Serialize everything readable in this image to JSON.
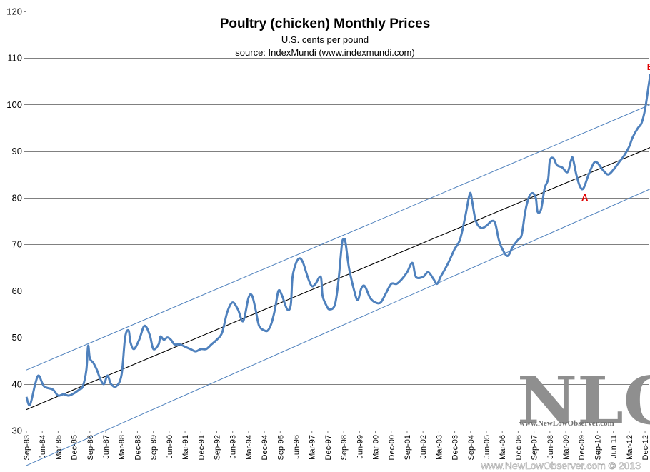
{
  "chart_data": {
    "type": "line",
    "title": "Poultry (chicken) Monthly Prices",
    "subtitle_lines": [
      "U.S. cents per pound",
      "source: IndexMundi (www.indexmundi.com)"
    ],
    "xlabel": "",
    "ylabel": "",
    "ylim": [
      30,
      120
    ],
    "y_ticks": [
      30,
      40,
      50,
      60,
      70,
      80,
      90,
      100,
      110,
      120
    ],
    "x_tick_labels": [
      "Sep-83",
      "Jun-84",
      "Mar-85",
      "Dec-85",
      "Sep-86",
      "Jun-87",
      "Mar-88",
      "Dec-88",
      "Sep-89",
      "Jun-90",
      "Mar-91",
      "Dec-91",
      "Sep-92",
      "Jun-93",
      "Mar-94",
      "Dec-94",
      "Sep-95",
      "Jun-96",
      "Mar-97",
      "Dec-97",
      "Sep-98",
      "Jun-99",
      "Mar-00",
      "Dec-00",
      "Sep-01",
      "Jun-02",
      "Mar-03",
      "Dec-03",
      "Sep-04",
      "Jun-05",
      "Mar-06",
      "Dec-06",
      "Sep-07",
      "Jun-08",
      "Mar-09",
      "Dec-09",
      "Sep-10",
      "Jun-11",
      "Mar-12",
      "Dec-12"
    ],
    "x_start": "Sep-83",
    "x_end": "Feb-13",
    "grid": "horizontal",
    "colors": {
      "series": "#4f81bd",
      "trend": "#000000",
      "channel": "#4f81bd",
      "grid": "#808080",
      "annotation": "#e00000"
    },
    "anchors": [
      [
        "Sep-83",
        37.2
      ],
      [
        "Nov-83",
        35.5
      ],
      [
        "Feb-84",
        40
      ],
      [
        "Apr-84",
        41.8
      ],
      [
        "Jul-84",
        39.5
      ],
      [
        "Dec-84",
        38.8
      ],
      [
        "Mar-85",
        37.5
      ],
      [
        "Jun-85",
        37.8
      ],
      [
        "Sep-85",
        37.5
      ],
      [
        "Dec-85",
        38
      ],
      [
        "Mar-86",
        38.8
      ],
      [
        "May-86",
        39.5
      ],
      [
        "Jul-86",
        43
      ],
      [
        "Aug-86",
        48.2
      ],
      [
        "Sep-86",
        45.5
      ],
      [
        "Nov-86",
        44.5
      ],
      [
        "Jan-87",
        43
      ],
      [
        "Mar-87",
        41
      ],
      [
        "May-87",
        40
      ],
      [
        "Jul-87",
        41.8
      ],
      [
        "Sep-87",
        40
      ],
      [
        "Dec-87",
        39.5
      ],
      [
        "Mar-88",
        42
      ],
      [
        "May-88",
        50
      ],
      [
        "Jul-88",
        51.5
      ],
      [
        "Aug-88",
        49
      ],
      [
        "Oct-88",
        47.5
      ],
      [
        "Jan-89",
        49.5
      ],
      [
        "Apr-89",
        52.5
      ],
      [
        "Jul-89",
        50.5
      ],
      [
        "Sep-89",
        47.5
      ],
      [
        "Dec-89",
        48.5
      ],
      [
        "Jan-90",
        50.2
      ],
      [
        "Mar-90",
        49.5
      ],
      [
        "May-90",
        50
      ],
      [
        "Jul-90",
        49.5
      ],
      [
        "Sep-90",
        48.5
      ],
      [
        "Dec-90",
        48.5
      ],
      [
        "Mar-91",
        48
      ],
      [
        "Jun-91",
        47.5
      ],
      [
        "Sep-91",
        47
      ],
      [
        "Dec-91",
        47.5
      ],
      [
        "Mar-92",
        47.5
      ],
      [
        "Jun-92",
        48.5
      ],
      [
        "Sep-92",
        49.5
      ],
      [
        "Dec-92",
        51
      ],
      [
        "Mar-93",
        55.5
      ],
      [
        "Jun-93",
        57.5
      ],
      [
        "Sep-93",
        56
      ],
      [
        "Dec-93",
        53.5
      ],
      [
        "Mar-94",
        58.5
      ],
      [
        "May-94",
        59
      ],
      [
        "Jul-94",
        56
      ],
      [
        "Sep-94",
        52.5
      ],
      [
        "Dec-94",
        51.5
      ],
      [
        "Feb-95",
        51.5
      ],
      [
        "Apr-95",
        53
      ],
      [
        "Jun-95",
        56
      ],
      [
        "Aug-95",
        60
      ],
      [
        "Oct-95",
        59
      ],
      [
        "Jan-96",
        56
      ],
      [
        "Mar-96",
        57
      ],
      [
        "Apr-96",
        63
      ],
      [
        "Jun-96",
        66
      ],
      [
        "Aug-96",
        67
      ],
      [
        "Oct-96",
        66
      ],
      [
        "Jan-97",
        62.5
      ],
      [
        "Mar-97",
        61
      ],
      [
        "May-97",
        61.5
      ],
      [
        "Aug-97",
        63
      ],
      [
        "Sep-97",
        59
      ],
      [
        "Nov-97",
        57
      ],
      [
        "Jan-98",
        56
      ],
      [
        "Apr-98",
        57
      ],
      [
        "Jun-98",
        62
      ],
      [
        "Aug-98",
        70
      ],
      [
        "Sep-98",
        71
      ],
      [
        "Oct-98",
        70.5
      ],
      [
        "Dec-98",
        65
      ],
      [
        "Mar-99",
        60
      ],
      [
        "May-99",
        58
      ],
      [
        "Jul-99",
        60.5
      ],
      [
        "Sep-99",
        61
      ],
      [
        "Dec-99",
        58.5
      ],
      [
        "Mar-00",
        57.5
      ],
      [
        "Jun-00",
        57.5
      ],
      [
        "Sep-00",
        59.5
      ],
      [
        "Dec-00",
        61.5
      ],
      [
        "Mar-01",
        61.5
      ],
      [
        "Jun-01",
        62.5
      ],
      [
        "Sep-01",
        64
      ],
      [
        "Dec-01",
        66
      ],
      [
        "Feb-02",
        63
      ],
      [
        "Jun-02",
        63
      ],
      [
        "Sep-02",
        64
      ],
      [
        "Dec-02",
        62.5
      ],
      [
        "Feb-03",
        61.5
      ],
      [
        "Apr-03",
        63
      ],
      [
        "Jul-03",
        65
      ],
      [
        "Sep-03",
        66.5
      ],
      [
        "Dec-03",
        69
      ],
      [
        "Mar-04",
        71
      ],
      [
        "Jun-04",
        76
      ],
      [
        "Aug-04",
        80
      ],
      [
        "Sep-04",
        81
      ],
      [
        "Oct-04",
        79
      ],
      [
        "Dec-04",
        75
      ],
      [
        "Mar-05",
        73.5
      ],
      [
        "Jun-05",
        74
      ],
      [
        "Sep-05",
        75
      ],
      [
        "Nov-05",
        74.5
      ],
      [
        "Jan-06",
        71
      ],
      [
        "Mar-06",
        69
      ],
      [
        "Jun-06",
        67.5
      ],
      [
        "Sep-06",
        69.5
      ],
      [
        "Dec-06",
        71
      ],
      [
        "Feb-07",
        72
      ],
      [
        "Apr-07",
        77
      ],
      [
        "Jun-07",
        80
      ],
      [
        "Aug-07",
        81
      ],
      [
        "Oct-07",
        80
      ],
      [
        "Nov-07",
        77
      ],
      [
        "Jan-08",
        77.5
      ],
      [
        "Mar-08",
        82
      ],
      [
        "May-08",
        84
      ],
      [
        "Jun-08",
        88
      ],
      [
        "Aug-08",
        88.5
      ],
      [
        "Oct-08",
        87
      ],
      [
        "Jan-09",
        86.5
      ],
      [
        "Apr-09",
        85.5
      ],
      [
        "Jun-09",
        88
      ],
      [
        "Jul-09",
        88.5
      ],
      [
        "Sep-09",
        85
      ],
      [
        "Nov-09",
        82.5
      ],
      [
        "Jan-10",
        82
      ],
      [
        "Apr-10",
        85
      ],
      [
        "Jul-10",
        87.5
      ],
      [
        "Sep-10",
        87.5
      ],
      [
        "Dec-10",
        86
      ],
      [
        "Mar-11",
        85
      ],
      [
        "Jun-11",
        86
      ],
      [
        "Sep-11",
        87.5
      ],
      [
        "Dec-11",
        89
      ],
      [
        "Mar-12",
        91
      ],
      [
        "May-12",
        93
      ],
      [
        "Aug-12",
        95
      ],
      [
        "Oct-12",
        96
      ],
      [
        "Dec-12",
        99
      ],
      [
        "Feb-13",
        104
      ],
      [
        "Mar-13",
        106.5
      ]
    ],
    "trend_line": {
      "from": [
        "Sep-83",
        34.5
      ],
      "to": [
        "Mar-13",
        90.8
      ]
    },
    "channel_upper": {
      "from": [
        "Sep-83",
        43
      ],
      "to": [
        "Mar-13",
        100
      ]
    },
    "channel_lower": {
      "from": [
        "Sep-83",
        22.5
      ],
      "to": [
        "Mar-13",
        81.9
      ]
    },
    "annotations": [
      {
        "label": "A",
        "at": [
          "Jan-10",
          82
        ]
      },
      {
        "label": "B",
        "at": [
          "Mar-13",
          106.5
        ]
      }
    ]
  },
  "watermark": {
    "logo": "NLO",
    "url": "www.NewLowObserver.com"
  },
  "footer": "www.NewLowObserver.com © 2013"
}
